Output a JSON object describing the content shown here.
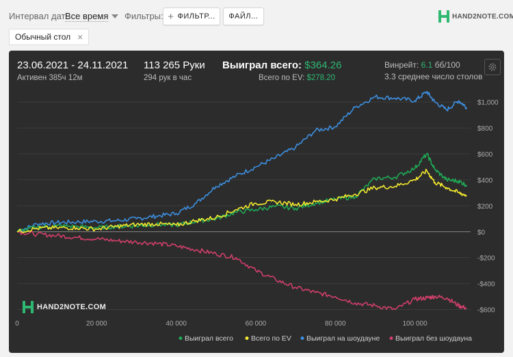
{
  "topbar": {
    "date_interval_label": "Интервал дат:",
    "date_interval_value": "Все время",
    "filters_label": "Фильтры:",
    "filter_button": "ФИЛЬТР...",
    "file_button": "ФАЙЛ...",
    "logo_text": "HAND2NOTE.COM",
    "active_chip": "Обычный стол"
  },
  "stats": {
    "date_range": "23.06.2021 - 24.11.2021",
    "active_time": "Активен 385ч 12м",
    "hands": "113 265 Руки",
    "hands_per_hour": "294 рук в час",
    "won_total_label": "Выиграл всего:",
    "won_total_value": "$364.26",
    "ev_total_label": "Всего по EV:",
    "ev_total_value": "$278.20",
    "winrate_label": "Винрейт:",
    "winrate_value": "6.1",
    "winrate_unit": "бб/100",
    "avg_tables": "3.3 среднее число столов"
  },
  "chart_watermark": "HAND2NOTE.COM",
  "colors": {
    "won_total": "#1faa55",
    "ev_total": "#f4ea2f",
    "showdown": "#3d8fe0",
    "non_showdown": "#d13f6b",
    "accent": "#2eb872"
  },
  "chart_data": {
    "type": "line",
    "x_ticks": [
      0,
      20000,
      40000,
      60000,
      80000,
      100000
    ],
    "x_tick_labels": [
      "0",
      "20 000",
      "40 000",
      "60 000",
      "80 000",
      "100 000"
    ],
    "y_ticks": [
      -600,
      -400,
      -200,
      0,
      200,
      400,
      600,
      800,
      1000
    ],
    "y_tick_labels": [
      "-$600",
      "-$400",
      "-$200",
      "$0",
      "$200",
      "$400",
      "$600",
      "$800",
      "$1,000"
    ],
    "xlim": [
      0,
      114000
    ],
    "ylim": [
      -650,
      1080
    ],
    "legend_position": "bottom-right",
    "series": [
      {
        "name": "Выиграл всего",
        "x": [
          0,
          5000,
          10000,
          15000,
          20000,
          25000,
          30000,
          35000,
          40000,
          45000,
          50000,
          55000,
          60000,
          65000,
          70000,
          75000,
          80000,
          85000,
          90000,
          95000,
          100000,
          103000,
          105000,
          108000,
          111000,
          113000
        ],
        "y": [
          0,
          35,
          45,
          40,
          30,
          40,
          45,
          55,
          50,
          80,
          100,
          150,
          170,
          195,
          180,
          220,
          250,
          270,
          410,
          420,
          490,
          600,
          480,
          400,
          390,
          360
        ]
      },
      {
        "name": "Всего по EV",
        "x": [
          0,
          5000,
          10000,
          15000,
          20000,
          25000,
          30000,
          35000,
          40000,
          45000,
          50000,
          55000,
          60000,
          65000,
          70000,
          75000,
          80000,
          85000,
          90000,
          95000,
          100000,
          103000,
          105000,
          108000,
          111000,
          113000
        ],
        "y": [
          0,
          25,
          30,
          30,
          20,
          40,
          55,
          60,
          50,
          85,
          110,
          170,
          220,
          230,
          210,
          230,
          250,
          290,
          340,
          350,
          400,
          470,
          380,
          340,
          300,
          280
        ]
      },
      {
        "name": "Выиграл на шоудауне",
        "x": [
          0,
          5000,
          10000,
          15000,
          20000,
          25000,
          30000,
          35000,
          40000,
          45000,
          50000,
          55000,
          60000,
          65000,
          70000,
          75000,
          80000,
          85000,
          90000,
          95000,
          100000,
          103000,
          105000,
          108000,
          111000,
          113000
        ],
        "y": [
          0,
          60,
          70,
          75,
          80,
          85,
          100,
          120,
          140,
          220,
          350,
          430,
          500,
          570,
          650,
          780,
          810,
          960,
          1040,
          1030,
          1010,
          1080,
          1000,
          940,
          1010,
          960
        ]
      },
      {
        "name": "Выиграл без шоудауна",
        "x": [
          0,
          5000,
          10000,
          15000,
          20000,
          25000,
          30000,
          35000,
          40000,
          45000,
          50000,
          55000,
          60000,
          65000,
          70000,
          75000,
          80000,
          85000,
          90000,
          95000,
          100000,
          103000,
          105000,
          108000,
          111000,
          113000
        ],
        "y": [
          0,
          -20,
          -30,
          -45,
          -55,
          -70,
          -80,
          -90,
          -110,
          -140,
          -170,
          -200,
          -300,
          -370,
          -430,
          -470,
          -500,
          -550,
          -570,
          -600,
          -520,
          -510,
          -500,
          -510,
          -570,
          -590
        ]
      }
    ]
  }
}
